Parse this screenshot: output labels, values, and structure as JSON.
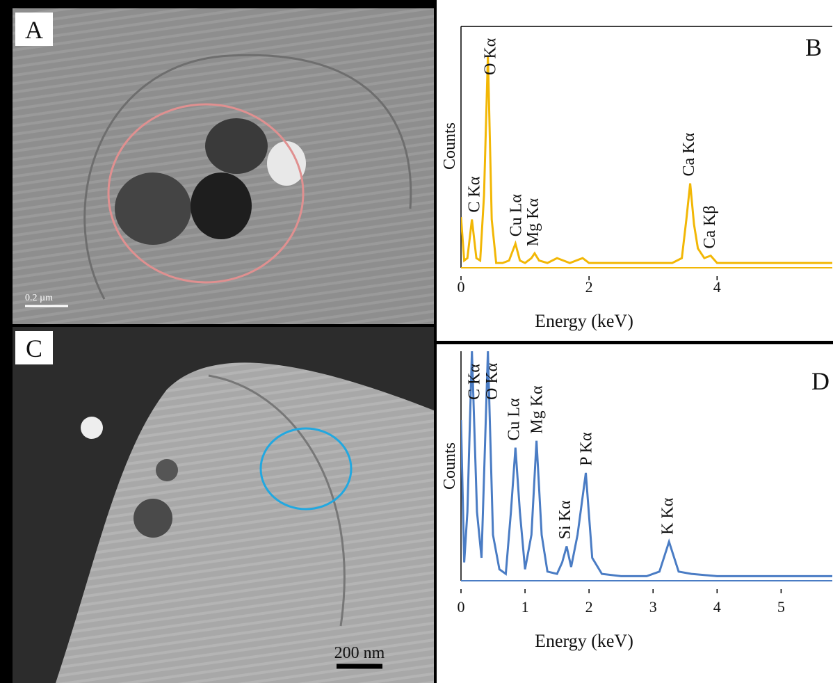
{
  "panels": [
    {
      "letter": "A",
      "scale_bar": "0.2 µm"
    },
    {
      "letter": "C",
      "scale_bar": "200 nm"
    }
  ],
  "chart_data": [
    {
      "type": "line",
      "panel": "B",
      "xlabel": "Energy (keV)",
      "ylabel": "Counts",
      "xlim": [
        0,
        5.8
      ],
      "ylim": [
        0,
        100
      ],
      "xticks": [
        0,
        2,
        4
      ],
      "series": [
        {
          "color": "#f2b705",
          "x": [
            0,
            0.05,
            0.1,
            0.17,
            0.24,
            0.3,
            0.36,
            0.42,
            0.48,
            0.55,
            0.65,
            0.75,
            0.85,
            0.92,
            1.0,
            1.1,
            1.15,
            1.22,
            1.35,
            1.5,
            1.7,
            1.9,
            2.0,
            2.2,
            2.6,
            3.0,
            3.3,
            3.45,
            3.52,
            3.58,
            3.64,
            3.7,
            3.8,
            3.9,
            4.0,
            4.3,
            4.7,
            5.2,
            5.8
          ],
          "values": [
            21,
            3,
            4,
            20,
            4,
            3,
            30,
            88,
            20,
            2,
            2,
            3,
            10,
            3,
            2,
            4,
            6,
            3,
            2,
            4,
            2,
            4,
            2,
            2,
            2,
            2,
            2,
            4,
            20,
            35,
            18,
            8,
            4,
            5,
            2,
            2,
            2,
            2,
            2
          ]
        }
      ],
      "annotations": [
        {
          "text": "C Kα",
          "x": 0.2
        },
        {
          "text": "O Kα",
          "x": 0.45
        },
        {
          "text": "Cu Lα",
          "x": 0.85
        },
        {
          "text": "Mg Kα",
          "x": 1.12
        },
        {
          "text": "Ca Kα",
          "x": 3.55
        },
        {
          "text": "Ca Kβ",
          "x": 3.88
        }
      ]
    },
    {
      "type": "line",
      "panel": "D",
      "xlabel": "Energy (keV)",
      "ylabel": "Counts",
      "xlim": [
        0,
        5.8
      ],
      "ylim": [
        0,
        100
      ],
      "xticks": [
        0,
        1,
        2,
        3,
        4,
        5
      ],
      "series": [
        {
          "color": "#4a7cc4",
          "x": [
            0,
            0.05,
            0.1,
            0.17,
            0.25,
            0.32,
            0.42,
            0.5,
            0.6,
            0.7,
            0.78,
            0.85,
            0.92,
            1.0,
            1.1,
            1.18,
            1.26,
            1.35,
            1.5,
            1.58,
            1.65,
            1.72,
            1.82,
            1.95,
            2.05,
            2.2,
            2.5,
            2.9,
            3.1,
            3.25,
            3.4,
            3.6,
            4.0,
            4.5,
            5.0,
            5.8
          ],
          "values": [
            70,
            8,
            30,
            100,
            30,
            10,
            100,
            20,
            5,
            3,
            30,
            58,
            30,
            5,
            20,
            61,
            20,
            4,
            3,
            8,
            15,
            6,
            20,
            47,
            10,
            3,
            2,
            2,
            4,
            17,
            4,
            3,
            2,
            2,
            2,
            2
          ]
        }
      ],
      "annotations": [
        {
          "text": "C Kα",
          "x": 0.2
        },
        {
          "text": "O Kα",
          "x": 0.48
        },
        {
          "text": "Cu Lα",
          "x": 0.82
        },
        {
          "text": "Mg Kα",
          "x": 1.18
        },
        {
          "text": "Si Kα",
          "x": 1.62
        },
        {
          "text": "P Kα",
          "x": 1.95
        },
        {
          "text": "K Kα",
          "x": 3.22
        }
      ]
    }
  ]
}
